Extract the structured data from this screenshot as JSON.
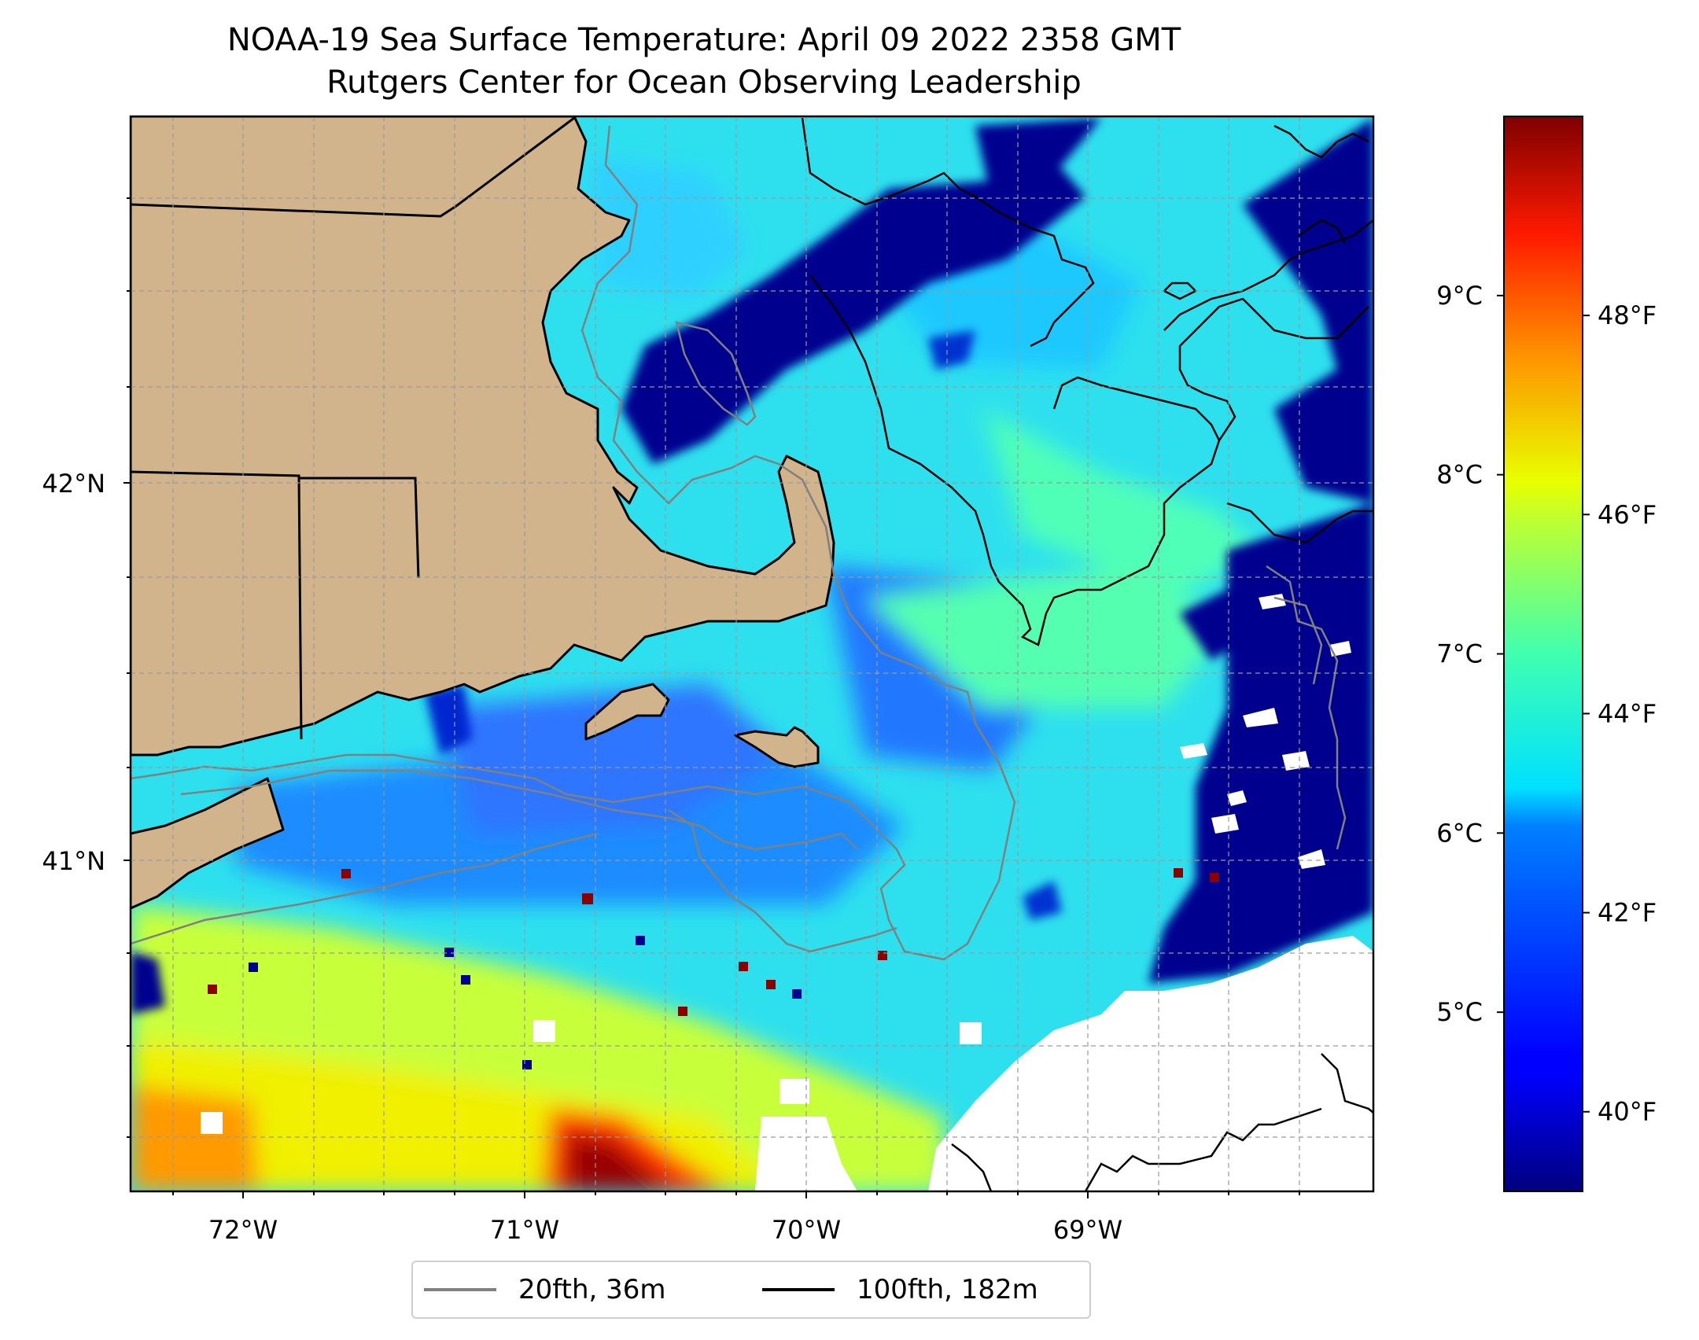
{
  "title": {
    "line1": "NOAA-19 Sea Surface Temperature: April 09 2022 2358 GMT",
    "line2": "Rutgers Center for Ocean Observing Leadership"
  },
  "map": {
    "lon_range": [
      -72.4,
      -68.0
    ],
    "lat_range": [
      40.1,
      42.95
    ],
    "land_color": "#d2b48c",
    "missing_color": "#ffffff",
    "x_ticks": [
      {
        "value": -72,
        "label": "72°W"
      },
      {
        "value": -71,
        "label": "71°W"
      },
      {
        "value": -70,
        "label": "70°W"
      },
      {
        "value": -69,
        "label": "69°W"
      }
    ],
    "y_ticks": [
      {
        "value": 42,
        "label": "42°N"
      },
      {
        "value": 41,
        "label": "41°N"
      }
    ],
    "grid": true
  },
  "colorbar": {
    "colormap": "jet",
    "range_celsius": [
      4.0,
      10.0
    ],
    "celsius_ticks": [
      {
        "value": 5,
        "label": "5°C"
      },
      {
        "value": 6,
        "label": "6°C"
      },
      {
        "value": 7,
        "label": "7°C"
      },
      {
        "value": 8,
        "label": "8°C"
      },
      {
        "value": 9,
        "label": "9°C"
      }
    ],
    "fahrenheit_ticks": [
      {
        "value": 40,
        "label": "40°F"
      },
      {
        "value": 42,
        "label": "42°F"
      },
      {
        "value": 44,
        "label": "44°F"
      },
      {
        "value": 46,
        "label": "46°F"
      },
      {
        "value": 48,
        "label": "48°F"
      }
    ]
  },
  "legend": {
    "items": [
      {
        "label": "20fth, 36m",
        "color": "#808080"
      },
      {
        "label": "100fth, 182m",
        "color": "#000000"
      }
    ]
  }
}
